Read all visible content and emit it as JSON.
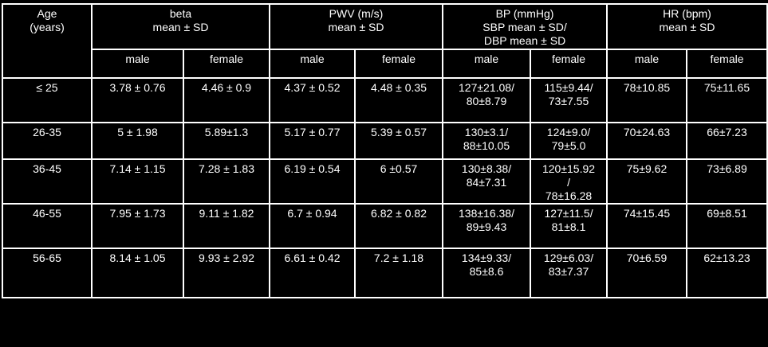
{
  "header": {
    "age": [
      "Age",
      "(years)"
    ],
    "beta": [
      "beta",
      "mean ± SD"
    ],
    "pwv": [
      "PWV (m/s)",
      "mean ± SD"
    ],
    "bp": [
      "BP (mmHg)",
      "SBP mean ± SD/",
      "DBP mean ± SD"
    ],
    "hr": [
      "HR (bpm)",
      "mean ± SD"
    ],
    "male": "male",
    "female": "female"
  },
  "rows": [
    {
      "age": "≤ 25",
      "beta_male": "3.78 ± 0.76",
      "beta_female": "4.46 ± 0.9",
      "pwv_male": "4.37 ± 0.52",
      "pwv_female": "4.48 ± 0.35",
      "bp_male": [
        "127±21.08/",
        "80±8.79"
      ],
      "bp_female": [
        "115±9.44/",
        "73±7.55"
      ],
      "hr_male": "78±10.85",
      "hr_female": "75±11.65"
    },
    {
      "age": "26-35",
      "beta_male": "5 ± 1.98",
      "beta_female": "5.89±1.3",
      "pwv_male": "5.17 ± 0.77",
      "pwv_female": "5.39 ± 0.57",
      "bp_male": [
        "130±3.1/",
        "88±10.05"
      ],
      "bp_female": [
        "124±9.0/",
        "79±5.0"
      ],
      "hr_male": "70±24.63",
      "hr_female": "66±7.23"
    },
    {
      "age": "36-45",
      "beta_male": "7.14 ± 1.15",
      "beta_female": "7.28 ± 1.83",
      "pwv_male": "6.19 ± 0.54",
      "pwv_female": "6 ±0.57",
      "bp_male": [
        "130±8.38/",
        "84±7.31"
      ],
      "bp_female": [
        "120±15.92",
        "/",
        "78±16.28"
      ],
      "hr_male": "75±9.62",
      "hr_female": "73±6.89"
    },
    {
      "age": "46-55",
      "beta_male": "7.95 ± 1.73",
      "beta_female": "9.11 ± 1.82",
      "pwv_male": "6.7 ± 0.94",
      "pwv_female": "6.82 ± 0.82",
      "bp_male": [
        "138±16.38/",
        "89±9.43"
      ],
      "bp_female": [
        "127±11.5/",
        "81±8.1"
      ],
      "hr_male": "74±15.45",
      "hr_female": "69±8.51"
    },
    {
      "age": "56-65",
      "beta_male": "8.14 ± 1.05",
      "beta_female": "9.93 ± 2.92",
      "pwv_male": "6.61 ± 0.42",
      "pwv_female": "7.2 ± 1.18",
      "bp_male": [
        "134±9.33/",
        "85±8.6"
      ],
      "bp_female": [
        "129±6.03/",
        "83±7.37"
      ],
      "hr_male": "70±6.59",
      "hr_female": "62±13.23"
    }
  ]
}
